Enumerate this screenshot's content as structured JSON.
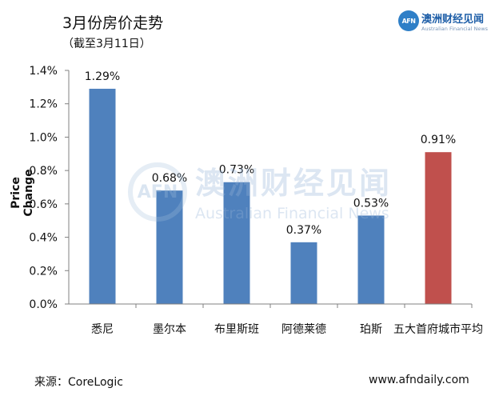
{
  "header": {
    "title": "3月份房价走势",
    "subtitle": "（截至3月11日）"
  },
  "logo": {
    "badge": "AFN",
    "name_cn": "澳洲财经见闻",
    "name_en": "Australian Financial News"
  },
  "watermark": {
    "badge": "AFN",
    "name_cn": "澳洲财经见闻",
    "name_en": "Australian Financial News"
  },
  "footer": {
    "source": "来源：CoreLogic",
    "site": "www.afndaily.com"
  },
  "chart_data": {
    "type": "bar",
    "categories": [
      "悉尼",
      "墨尔本",
      "布里斯班",
      "阿德莱德",
      "珀斯",
      "五大首府城市平均"
    ],
    "values": [
      1.29,
      0.68,
      0.73,
      0.37,
      0.53,
      0.91
    ],
    "data_labels": [
      "1.29%",
      "0.68%",
      "0.73%",
      "0.37%",
      "0.53%",
      "0.91%"
    ],
    "bar_colors": [
      "#4f81bd",
      "#4f81bd",
      "#4f81bd",
      "#4f81bd",
      "#4f81bd",
      "#c0504d"
    ],
    "title": "3月份房价走势",
    "xlabel": "",
    "ylabel": "Price Change",
    "ylim": [
      0,
      1.4
    ],
    "yticks": [
      0,
      0.2,
      0.4,
      0.6,
      0.8,
      1.0,
      1.2,
      1.4
    ],
    "ytick_labels": [
      "0.0%",
      "0.2%",
      "0.4%",
      "0.6%",
      "0.8%",
      "1.0%",
      "1.2%",
      "1.4%"
    ],
    "grid": false,
    "legend": "none"
  }
}
